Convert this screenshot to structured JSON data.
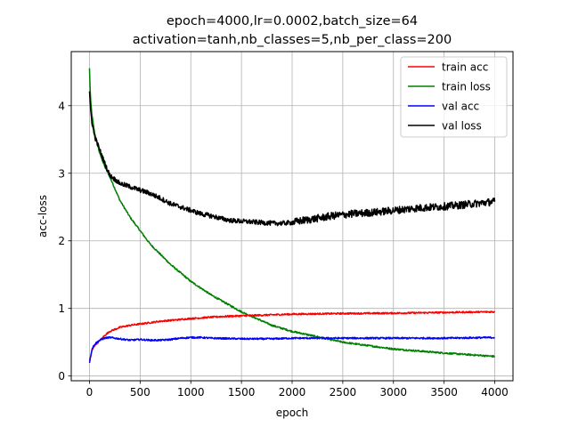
{
  "chart_data": {
    "type": "line",
    "title_line1": "epoch=4000,lr=0.0002,batch_size=64",
    "title_line2": "activation=tanh,nb_classes=5,nb_per_class=200",
    "xlabel": "epoch",
    "ylabel": "acc-loss",
    "xlim": [
      -180,
      4180
    ],
    "ylim": [
      -0.07,
      4.8
    ],
    "xticks": [
      0,
      500,
      1000,
      1500,
      2000,
      2500,
      3000,
      3500,
      4000
    ],
    "yticks": [
      0,
      1,
      2,
      3,
      4
    ],
    "grid": true,
    "legend_position": "top-right",
    "series": [
      {
        "name": "train acc",
        "color": "#ff0000",
        "x": [
          0,
          25,
          50,
          100,
          150,
          200,
          300,
          400,
          500,
          700,
          1000,
          1300,
          1500,
          2000,
          2500,
          3000,
          3500,
          4000
        ],
        "values": [
          0.22,
          0.38,
          0.45,
          0.52,
          0.6,
          0.66,
          0.72,
          0.75,
          0.77,
          0.81,
          0.85,
          0.88,
          0.89,
          0.915,
          0.925,
          0.93,
          0.94,
          0.95
        ]
      },
      {
        "name": "train loss",
        "color": "#008000",
        "x": [
          0,
          10,
          25,
          50,
          100,
          150,
          200,
          300,
          400,
          500,
          600,
          700,
          800,
          1000,
          1200,
          1500,
          1800,
          2000,
          2500,
          3000,
          3500,
          4000
        ],
        "values": [
          4.55,
          4.1,
          3.85,
          3.6,
          3.3,
          3.1,
          2.95,
          2.6,
          2.35,
          2.15,
          1.95,
          1.8,
          1.65,
          1.4,
          1.2,
          0.95,
          0.75,
          0.66,
          0.5,
          0.4,
          0.34,
          0.29
        ]
      },
      {
        "name": "val acc",
        "color": "#0000ff",
        "x": [
          0,
          25,
          50,
          100,
          150,
          200,
          300,
          400,
          500,
          600,
          700,
          800,
          900,
          1000,
          1100,
          1200,
          1500,
          1800,
          2000,
          2500,
          3000,
          3500,
          4000
        ],
        "values": [
          0.2,
          0.4,
          0.47,
          0.53,
          0.56,
          0.57,
          0.55,
          0.53,
          0.54,
          0.53,
          0.53,
          0.54,
          0.56,
          0.57,
          0.57,
          0.56,
          0.55,
          0.55,
          0.56,
          0.56,
          0.56,
          0.56,
          0.57
        ]
      },
      {
        "name": "val loss",
        "color": "#000000",
        "x": [
          0,
          10,
          25,
          50,
          100,
          150,
          200,
          300,
          400,
          500,
          600,
          700,
          800,
          900,
          1000,
          1100,
          1200,
          1300,
          1400,
          1500,
          1600,
          1700,
          1800,
          1900,
          2000,
          2100,
          2200,
          2400,
          2600,
          2800,
          3000,
          3200,
          3400,
          3600,
          3800,
          4000
        ],
        "values": [
          4.2,
          3.95,
          3.75,
          3.55,
          3.35,
          3.15,
          2.97,
          2.85,
          2.8,
          2.75,
          2.7,
          2.63,
          2.55,
          2.5,
          2.45,
          2.4,
          2.37,
          2.33,
          2.3,
          2.29,
          2.28,
          2.27,
          2.26,
          2.26,
          2.27,
          2.3,
          2.32,
          2.37,
          2.4,
          2.42,
          2.45,
          2.48,
          2.5,
          2.52,
          2.55,
          2.58
        ]
      }
    ]
  }
}
